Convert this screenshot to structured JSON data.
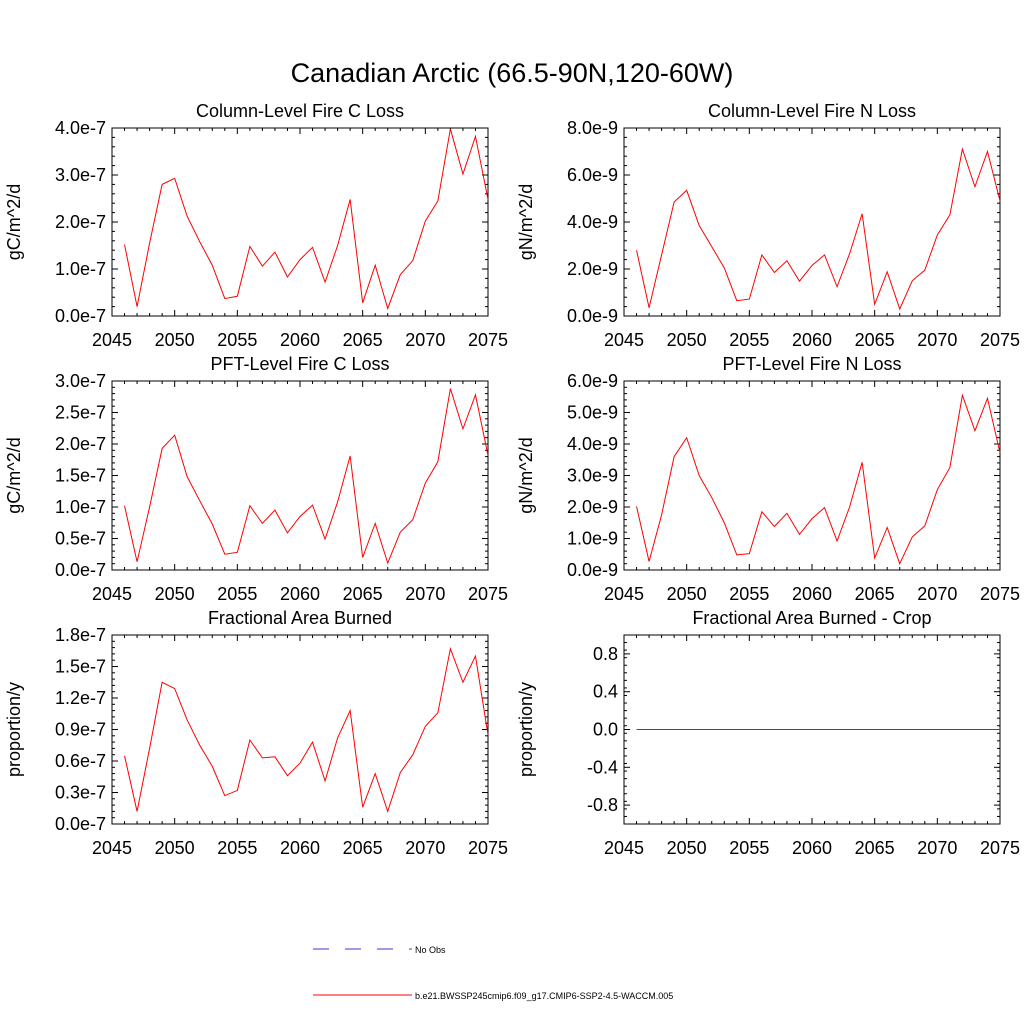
{
  "figure": {
    "title": "Canadian Arctic (66.5-90N,120-60W)",
    "legend": [
      {
        "label": "No Obs",
        "style": "dashed",
        "color": "#3b3bbf"
      },
      {
        "label": "b.e21.BWSSP245cmip6.f09_g17.CMIP6-SSP2-4.5-WACCM.005",
        "style": "solid",
        "color": "#ff0000"
      }
    ]
  },
  "chart_data": [
    {
      "type": "line",
      "title": "Column-Level Fire C Loss",
      "ylabel": "gC/m^2/d",
      "xlim": [
        2045,
        2075
      ],
      "ylim": [
        0,
        4e-07
      ],
      "xticks": [
        2045,
        2050,
        2055,
        2060,
        2065,
        2070,
        2075
      ],
      "yticks": [
        0,
        1e-07,
        2e-07,
        3e-07,
        4e-07
      ],
      "ytick_labels": [
        "0.0e-7",
        "1.0e-7",
        "2.0e-7",
        "3.0e-7",
        "4.0e-7"
      ],
      "grid": false,
      "x": [
        2046,
        2047,
        2048,
        2049,
        2050,
        2051,
        2052,
        2053,
        2054,
        2055,
        2056,
        2057,
        2058,
        2059,
        2060,
        2061,
        2062,
        2063,
        2064,
        2065,
        2066,
        2067,
        2068,
        2069,
        2070,
        2071,
        2072,
        2073,
        2074,
        2075
      ],
      "series": [
        {
          "color": "#ff0000",
          "values": [
            1.52e-07,
            2e-08,
            1.55e-07,
            2.8e-07,
            2.93e-07,
            2.12e-07,
            1.58e-07,
            1.08e-07,
            3.7e-08,
            4.2e-08,
            1.48e-07,
            1.06e-07,
            1.36e-07,
            8.3e-08,
            1.2e-07,
            1.46e-07,
            7.2e-08,
            1.5e-07,
            2.48e-07,
            2.8e-08,
            1.08e-07,
            1.6e-08,
            8.8e-08,
            1.18e-07,
            2.02e-07,
            2.45e-07,
            3.98e-07,
            3.02e-07,
            3.82e-07,
            2.48e-07
          ]
        }
      ]
    },
    {
      "type": "line",
      "title": "Column-Level Fire N Loss",
      "ylabel": "gN/m^2/d",
      "xlim": [
        2045,
        2075
      ],
      "ylim": [
        0,
        8e-09
      ],
      "xticks": [
        2045,
        2050,
        2055,
        2060,
        2065,
        2070,
        2075
      ],
      "yticks": [
        0,
        2e-09,
        4e-09,
        6e-09,
        8e-09
      ],
      "ytick_labels": [
        "0.0e-9",
        "2.0e-9",
        "4.0e-9",
        "6.0e-9",
        "8.0e-9"
      ],
      "grid": false,
      "x": [
        2046,
        2047,
        2048,
        2049,
        2050,
        2051,
        2052,
        2053,
        2054,
        2055,
        2056,
        2057,
        2058,
        2059,
        2060,
        2061,
        2062,
        2063,
        2064,
        2065,
        2066,
        2067,
        2068,
        2069,
        2070,
        2071,
        2072,
        2073,
        2074,
        2075
      ],
      "series": [
        {
          "color": "#ff0000",
          "values": [
            2.8e-09,
            3.5e-10,
            2.6e-09,
            4.85e-09,
            5.35e-09,
            3.85e-09,
            2.95e-09,
            2.05e-09,
            6.5e-10,
            7.2e-10,
            2.6e-09,
            1.85e-09,
            2.35e-09,
            1.48e-09,
            2.15e-09,
            2.6e-09,
            1.25e-09,
            2.65e-09,
            4.35e-09,
            5e-10,
            1.88e-09,
            3e-10,
            1.5e-09,
            1.95e-09,
            3.45e-09,
            4.3e-09,
            7.1e-09,
            5.5e-09,
            7e-09,
            4.9e-09
          ]
        }
      ]
    },
    {
      "type": "line",
      "title": "PFT-Level Fire C Loss",
      "ylabel": "gC/m^2/d",
      "xlim": [
        2045,
        2075
      ],
      "ylim": [
        0,
        3e-07
      ],
      "xticks": [
        2045,
        2050,
        2055,
        2060,
        2065,
        2070,
        2075
      ],
      "yticks": [
        0,
        5e-08,
        1e-07,
        1.5e-07,
        2e-07,
        2.5e-07,
        3e-07
      ],
      "ytick_labels": [
        "0.0e-7",
        "0.5e-7",
        "1.0e-7",
        "1.5e-7",
        "2.0e-7",
        "2.5e-7",
        "3.0e-7"
      ],
      "grid": false,
      "x": [
        2046,
        2047,
        2048,
        2049,
        2050,
        2051,
        2052,
        2053,
        2054,
        2055,
        2056,
        2057,
        2058,
        2059,
        2060,
        2061,
        2062,
        2063,
        2064,
        2065,
        2066,
        2067,
        2068,
        2069,
        2070,
        2071,
        2072,
        2073,
        2074,
        2075
      ],
      "series": [
        {
          "color": "#ff0000",
          "values": [
            1.02e-07,
            1.3e-08,
            1e-07,
            1.93e-07,
            2.14e-07,
            1.48e-07,
            1.1e-07,
            7.3e-08,
            2.5e-08,
            2.8e-08,
            1.02e-07,
            7.4e-08,
            9.5e-08,
            5.9e-08,
            8.5e-08,
            1.03e-07,
            4.9e-08,
            1.08e-07,
            1.81e-07,
            2e-08,
            7.4e-08,
            1.1e-08,
            6e-08,
            8e-08,
            1.38e-07,
            1.72e-07,
            2.88e-07,
            2.24e-07,
            2.78e-07,
            1.82e-07
          ]
        }
      ]
    },
    {
      "type": "line",
      "title": "PFT-Level Fire N Loss",
      "ylabel": "gN/m^2/d",
      "xlim": [
        2045,
        2075
      ],
      "ylim": [
        0,
        6e-09
      ],
      "xticks": [
        2045,
        2050,
        2055,
        2060,
        2065,
        2070,
        2075
      ],
      "yticks": [
        0,
        1e-09,
        2e-09,
        3e-09,
        4e-09,
        5e-09,
        6e-09
      ],
      "ytick_labels": [
        "0.0e-9",
        "1.0e-9",
        "2.0e-9",
        "3.0e-9",
        "4.0e-9",
        "5.0e-9",
        "6.0e-9"
      ],
      "grid": false,
      "x": [
        2046,
        2047,
        2048,
        2049,
        2050,
        2051,
        2052,
        2053,
        2054,
        2055,
        2056,
        2057,
        2058,
        2059,
        2060,
        2061,
        2062,
        2063,
        2064,
        2065,
        2066,
        2067,
        2068,
        2069,
        2070,
        2071,
        2072,
        2073,
        2074,
        2075
      ],
      "series": [
        {
          "color": "#ff0000",
          "values": [
            2.02e-09,
            2.7e-10,
            1.75e-09,
            3.6e-09,
            4.2e-09,
            3e-09,
            2.3e-09,
            1.5e-09,
            4.8e-10,
            5.2e-10,
            1.85e-09,
            1.38e-09,
            1.8e-09,
            1.13e-09,
            1.63e-09,
            1.98e-09,
            9.2e-10,
            2e-09,
            3.42e-09,
            3.8e-10,
            1.35e-09,
            2e-10,
            1.05e-09,
            1.4e-09,
            2.55e-09,
            3.25e-09,
            5.55e-09,
            4.42e-09,
            5.45e-09,
            3.72e-09
          ]
        }
      ]
    },
    {
      "type": "line",
      "title": "Fractional Area Burned",
      "ylabel": "proportion/y",
      "xlim": [
        2045,
        2075
      ],
      "ylim": [
        0,
        1.8e-07
      ],
      "xticks": [
        2045,
        2050,
        2055,
        2060,
        2065,
        2070,
        2075
      ],
      "yticks": [
        0,
        3e-08,
        6e-08,
        9e-08,
        1.2e-07,
        1.5e-07,
        1.8e-07
      ],
      "ytick_labels": [
        "0.0e-7",
        "0.3e-7",
        "0.6e-7",
        "0.9e-7",
        "1.2e-7",
        "1.5e-7",
        "1.8e-7"
      ],
      "grid": false,
      "x": [
        2046,
        2047,
        2048,
        2049,
        2050,
        2051,
        2052,
        2053,
        2054,
        2055,
        2056,
        2057,
        2058,
        2059,
        2060,
        2061,
        2062,
        2063,
        2064,
        2065,
        2066,
        2067,
        2068,
        2069,
        2070,
        2071,
        2072,
        2073,
        2074,
        2075
      ],
      "series": [
        {
          "color": "#ff0000",
          "values": [
            6.5e-08,
            1.2e-08,
            7.2e-08,
            1.35e-07,
            1.29e-07,
            9.9e-08,
            7.5e-08,
            5.5e-08,
            2.7e-08,
            3.2e-08,
            8e-08,
            6.3e-08,
            6.4e-08,
            4.6e-08,
            5.8e-08,
            7.8e-08,
            4.1e-08,
            8.2e-08,
            1.08e-07,
            1.6e-08,
            4.8e-08,
            1.2e-08,
            4.9e-08,
            6.6e-08,
            9.3e-08,
            1.06e-07,
            1.67e-07,
            1.35e-07,
            1.6e-07,
            8.5e-08
          ]
        }
      ]
    },
    {
      "type": "line",
      "title": "Fractional Area Burned - Crop",
      "ylabel": "proportion/y",
      "xlim": [
        2045,
        2075
      ],
      "ylim": [
        -1.0,
        1.0
      ],
      "xticks": [
        2045,
        2050,
        2055,
        2060,
        2065,
        2070,
        2075
      ],
      "yticks": [
        -0.8,
        -0.4,
        0.0,
        0.4,
        0.8
      ],
      "ytick_labels": [
        "-0.8",
        "-0.4",
        "0.0",
        "0.4",
        "0.8"
      ],
      "grid": false,
      "x": [
        2046,
        2075
      ],
      "series": [
        {
          "color": "#ff0000",
          "values": [
            0,
            0
          ]
        }
      ]
    }
  ]
}
